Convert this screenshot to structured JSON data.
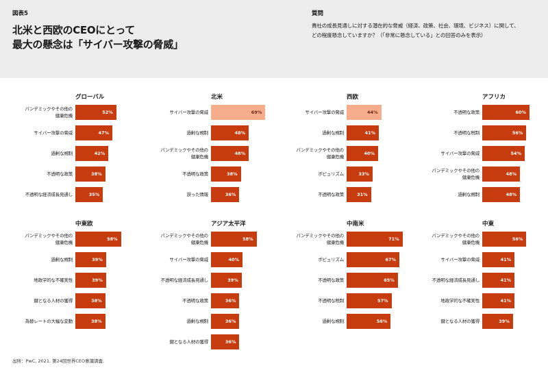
{
  "header": {
    "figure_label": "図表5",
    "title_line1": "北米と西欧のCEOにとって",
    "title_line2": "最大の懸念は「サイバー攻撃の脅威」",
    "question_label": "質問",
    "question_line1": "貴社の成長見通しに対する潜在的な脅威（経済、政策、社会、環境、ビジネス）に関して、",
    "question_line2": "どの程度懸念していますか？（「非常に懸念している」との回答のみを表示）"
  },
  "colors": {
    "bar": "#c63c0e",
    "highlight": "#f7ad8c",
    "header_bg": "#ececec"
  },
  "chart_data": [
    {
      "type": "bar",
      "title": "グローバル",
      "unit": "%",
      "categories": [
        "パンデミックやその他の 健康危機",
        "サイバー攻撃の脅威",
        "過剰な規制",
        "不透明な政策",
        "不透明な経済成長見通し"
      ],
      "values": [
        52,
        47,
        42,
        38,
        35
      ],
      "highlight": null
    },
    {
      "type": "bar",
      "title": "北米",
      "unit": "%",
      "categories": [
        "サイバー攻撃の脅威",
        "過剰な規制",
        "パンデミックやその他の 健康危機",
        "不透明な政策",
        "誤った情報"
      ],
      "values": [
        69,
        48,
        48,
        38,
        36
      ],
      "highlight": 0
    },
    {
      "type": "bar",
      "title": "西欧",
      "unit": "%",
      "categories": [
        "サイバー攻撃の脅威",
        "過剰な規制",
        "パンデミックやその他の 健康危機",
        "ポピュリズム",
        "不透明な政策"
      ],
      "values": [
        44,
        41,
        40,
        33,
        31
      ],
      "highlight": 0
    },
    {
      "type": "bar",
      "title": "アフリカ",
      "unit": "%",
      "categories": [
        "不透明な政策",
        "不透明な税制",
        "サイバー攻撃の脅威",
        "パンデミックやその他の 健康危機",
        "過剰な規制"
      ],
      "values": [
        60,
        56,
        54,
        48,
        48
      ],
      "highlight": null
    },
    {
      "type": "bar",
      "title": "中東欧",
      "unit": "%",
      "categories": [
        "パンデミックやその他の 健康危機",
        "過剰な規制",
        "地政学的な不確実性",
        "鍵となる人材の獲得",
        "為替レートの大幅な変動"
      ],
      "values": [
        58,
        39,
        39,
        38,
        38
      ],
      "highlight": null
    },
    {
      "type": "bar",
      "title": "アジア太平洋",
      "unit": "%",
      "categories": [
        "パンデミックやその他の 健康危機",
        "サイバー攻撃の脅威",
        "不透明な経済成長見通し",
        "不透明な政策",
        "過剰な規制",
        "鍵となる人材の獲得"
      ],
      "values": [
        58,
        40,
        39,
        36,
        36,
        36
      ],
      "highlight": null
    },
    {
      "type": "bar",
      "title": "中南米",
      "unit": "%",
      "categories": [
        "パンデミックやその他の 健康危機",
        "ポピュリズム",
        "不透明な政策",
        "不透明な税制",
        "過剰な規制"
      ],
      "values": [
        71,
        67,
        65,
        57,
        56
      ],
      "highlight": null
    },
    {
      "type": "bar",
      "title": "中東",
      "unit": "%",
      "categories": [
        "パンデミックやその他の 健康危機",
        "サイバー攻撃の脅威",
        "不透明な経済成長見通し",
        "地政学的な不確実性",
        "鍵となる人材の獲得"
      ],
      "values": [
        56,
        41,
        41,
        41,
        39
      ],
      "highlight": null
    }
  ],
  "footer": {
    "source": "出所：PwC, 2021. 第24回世界CEO意識調査."
  }
}
